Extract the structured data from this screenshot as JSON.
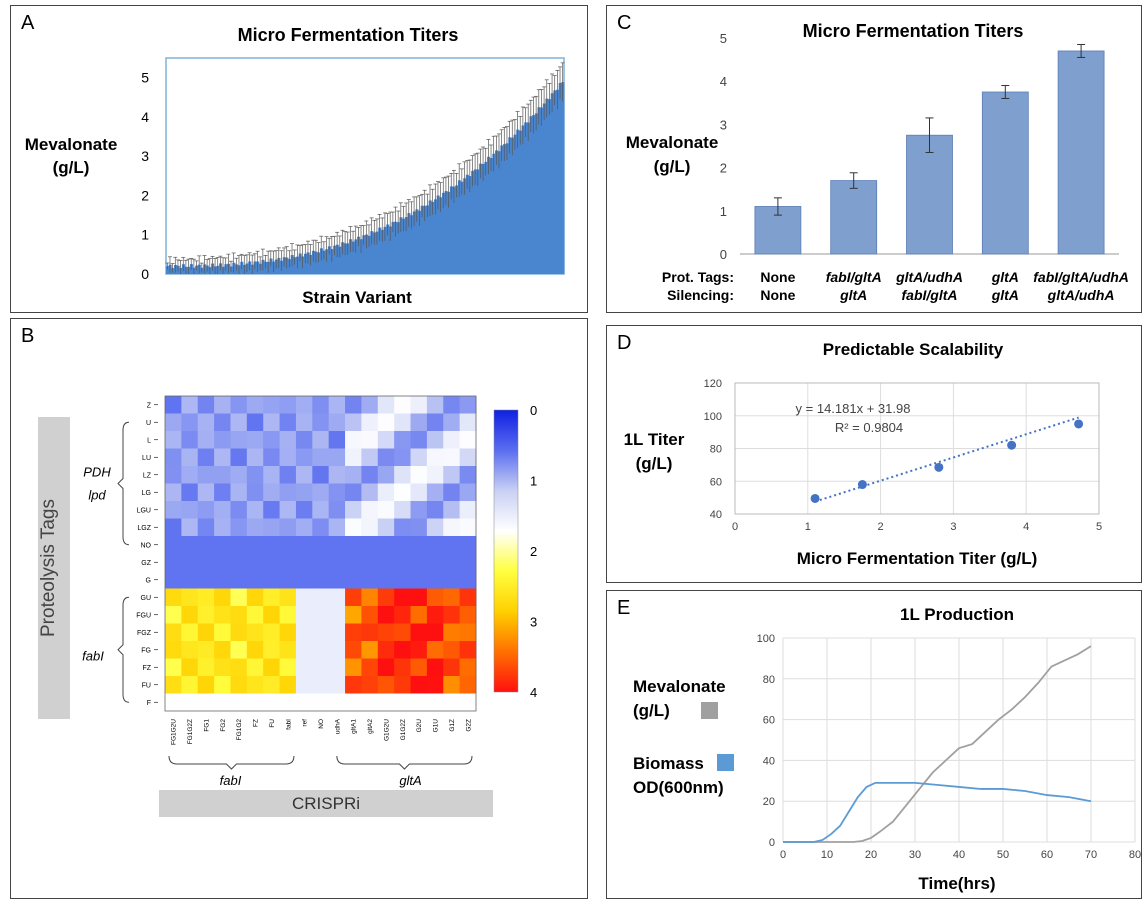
{
  "panels": {
    "A": {
      "letter": "A",
      "chart_data": {
        "type": "bar",
        "title": "Micro Fermentation Titers",
        "xlabel": "Strain Variant",
        "ylabel_line1": "Mevalonate",
        "ylabel_line2": "(g/L)",
        "ylim": [
          0,
          5.5
        ],
        "yticks": [
          "0",
          "1",
          "2",
          "3",
          "4",
          "5"
        ],
        "n_bars": 150,
        "start_value": 0.2,
        "end_value": 4.9,
        "bar_color": "#4a86d0",
        "error_bars": true
      }
    },
    "B": {
      "letter": "B",
      "chart_data": {
        "type": "heatmap",
        "yaxis_title": "Proteolysis Tags",
        "xaxis_title": "CRISPRi",
        "row_labels": [
          "Z",
          "U",
          "L",
          "LU",
          "LZ",
          "LG",
          "LGU",
          "LGZ",
          "NO",
          "GZ",
          "G",
          "GU",
          "FGU",
          "FGZ",
          "FG",
          "FZ",
          "FU",
          "F"
        ],
        "col_labels": [
          "FG1G2U",
          "FG1G2Z",
          "FG1",
          "FG2",
          "FG1G2",
          "FZ",
          "FU",
          "fabI",
          "ref",
          "NO",
          "udhA",
          "gltA1",
          "gltA2",
          "G1G2U",
          "G1G2Z",
          "G2U",
          "G1U",
          "G1Z",
          "G2Z"
        ],
        "row_groups": [
          {
            "label_line1": "PDH",
            "label_line2": "lpd"
          },
          {
            "label_line1": "fabI",
            "label_line2": ""
          }
        ],
        "col_groups": [
          {
            "label": "fabI"
          },
          {
            "label": "gltA"
          }
        ],
        "colorbar_ticks": [
          "0",
          "1",
          "2",
          "3",
          "4"
        ],
        "colorbar_stops": [
          "#1020e0",
          "#5a6ef0",
          "#c8d0f4",
          "#ffffff",
          "#ffff40",
          "#ffd000",
          "#ff7000",
          "#ff1010"
        ]
      }
    },
    "C": {
      "letter": "C",
      "chart_data": {
        "type": "bar",
        "title": "Micro Fermentation Titers",
        "ylabel_line1": "Mevalonate",
        "ylabel_line2": "(g/L)",
        "ylim": [
          0,
          5
        ],
        "yticks": [
          "0",
          "1",
          "2",
          "3",
          "4",
          "5"
        ],
        "values": [
          1.1,
          1.7,
          2.75,
          3.75,
          4.7
        ],
        "errors": [
          0.2,
          0.18,
          0.4,
          0.15,
          0.15
        ],
        "row_label_tags": "Prot. Tags:",
        "row_label_silencing": "Silencing:",
        "prot_tags": [
          "None",
          "fabI/gltA",
          "gltA/udhA",
          "gltA",
          "fabI/gltA/udhA"
        ],
        "silencing": [
          "None",
          "gltA",
          "fabI/gltA",
          "gltA",
          "gltA/udhA"
        ],
        "bar_color": "#7f9fce"
      }
    },
    "D": {
      "letter": "D",
      "chart_data": {
        "type": "scatter",
        "title": "Predictable Scalability",
        "xlabel": "Micro Fermentation Titer (g/L)",
        "ylabel_line1": "1L Titer",
        "ylabel_line2": "(g/L)",
        "xlim": [
          0,
          5
        ],
        "ylim": [
          40,
          120
        ],
        "xticks": [
          "0",
          "1",
          "2",
          "3",
          "4",
          "5"
        ],
        "yticks": [
          "40",
          "60",
          "80",
          "100",
          "120"
        ],
        "x": [
          1.1,
          1.75,
          2.8,
          3.8,
          4.72
        ],
        "y": [
          49.5,
          58,
          68.5,
          82,
          95
        ],
        "equation": "y = 14.181x + 31.98",
        "r2": "R² = 0.9804",
        "color": "#4472c4"
      }
    },
    "E": {
      "letter": "E",
      "chart_data": {
        "type": "line",
        "title": "1L Production",
        "xlabel": "Time(hrs)",
        "xlim": [
          0,
          80
        ],
        "ylim": [
          0,
          100
        ],
        "xticks": [
          "0",
          "10",
          "20",
          "30",
          "40",
          "50",
          "60",
          "70",
          "80"
        ],
        "yticks": [
          "0",
          "20",
          "40",
          "60",
          "80",
          "100"
        ],
        "series": [
          {
            "name_line1": "Mevalonate",
            "name_line2": "(g/L)",
            "color": "#a0a0a0",
            "x": [
              0,
              16,
              18,
              20,
              22,
              25,
              28,
              31,
              34,
              37,
              40,
              43,
              46,
              49,
              52,
              55,
              58,
              61,
              64,
              67,
              70
            ],
            "y": [
              0,
              0,
              0.5,
              2,
              5,
              10,
              18,
              26,
              34,
              40,
              46,
              48,
              54,
              60,
              65,
              71,
              78,
              86,
              89,
              92,
              96
            ]
          },
          {
            "name_line1": "Biomass",
            "name_line2": "OD(600nm)",
            "color": "#5b9bd5",
            "x": [
              0,
              7,
              9,
              11,
              13,
              15,
              17,
              19,
              21,
              23,
              25,
              30,
              35,
              40,
              45,
              50,
              55,
              60,
              65,
              70
            ],
            "y": [
              0,
              0,
              1,
              4,
              8,
              15,
              22,
              27,
              29,
              29,
              29,
              29,
              28,
              27,
              26,
              26,
              25,
              23,
              22,
              20
            ]
          }
        ]
      }
    }
  }
}
